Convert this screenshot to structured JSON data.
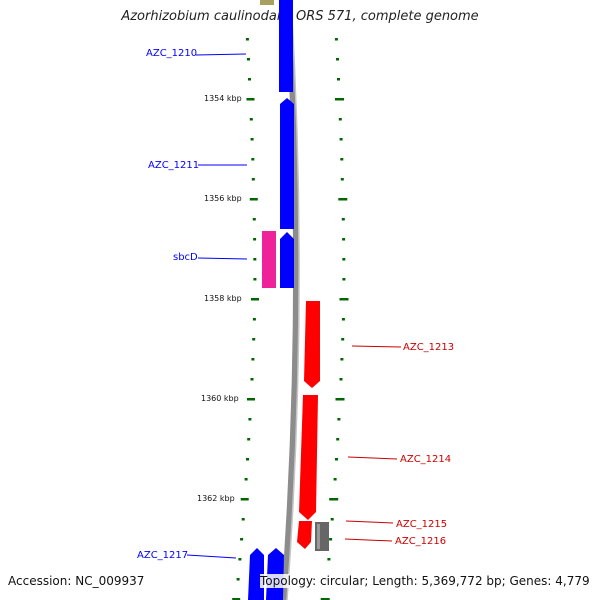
{
  "title": "Azorhizobium caulinodans ORS 571, complete genome",
  "footer": {
    "accession": "Accession: NC_009937",
    "summary": "Topology: circular; Length: 5,369,772 bp; Genes: 4,779"
  },
  "colors": {
    "forward_gene": "#0000ff",
    "reverse_gene": "#ff0000",
    "feature_pink": "#ee2299",
    "gray_feature": "#666666",
    "tick": "#006600",
    "backbone": "#8c8c8c"
  },
  "scale": {
    "unit": "kbp",
    "labels": [
      "1354 kbp",
      "1356 kbp",
      "1358 kbp",
      "1360 kbp",
      "1362 kbp"
    ]
  },
  "genes": [
    {
      "name": "AZC_1210",
      "strand": "forward",
      "start_kbp": 1352.4,
      "end_kbp": 1353.8
    },
    {
      "name": "AZC_1211",
      "strand": "forward",
      "start_kbp": 1354.0,
      "end_kbp": 1356.6
    },
    {
      "name": "sbcD",
      "strand": "forward",
      "start_kbp": 1356.6,
      "end_kbp": 1357.8
    },
    {
      "name": "AZC_1213",
      "strand": "reverse",
      "start_kbp": 1358.0,
      "end_kbp": 1359.8
    },
    {
      "name": "AZC_1214",
      "strand": "reverse",
      "start_kbp": 1359.9,
      "end_kbp": 1362.5
    },
    {
      "name": "AZC_1215",
      "strand": "reverse",
      "start_kbp": 1362.5,
      "end_kbp": 1363.0
    },
    {
      "name": "AZC_1216",
      "strand": "reverse",
      "start_kbp": 1362.5,
      "end_kbp": 1363.1
    },
    {
      "name": "AZC_1217",
      "strand": "forward",
      "start_kbp": 1363.0,
      "end_kbp": 1364.0
    }
  ]
}
